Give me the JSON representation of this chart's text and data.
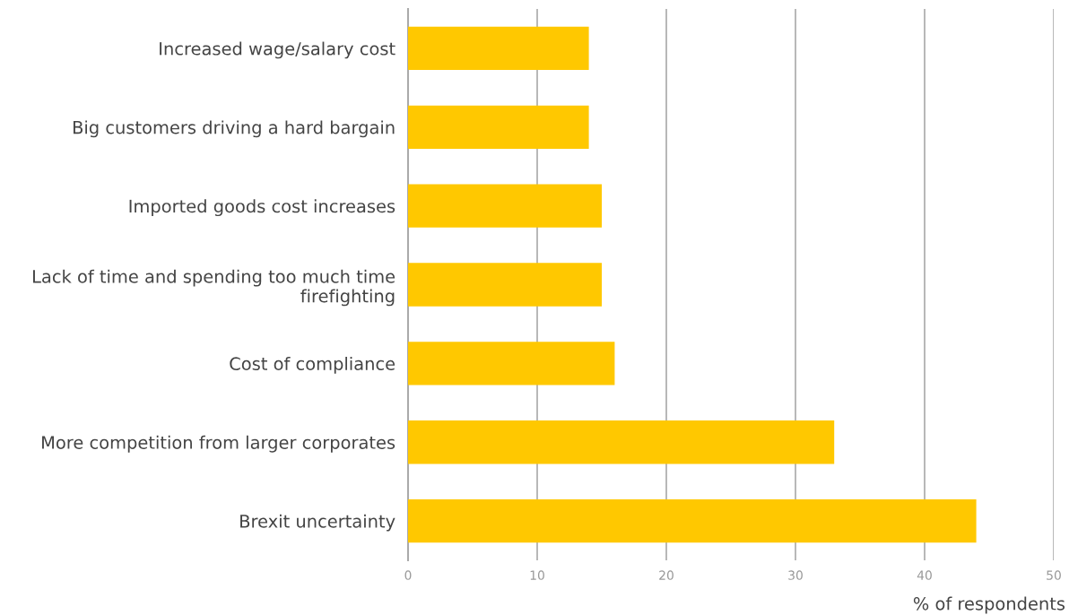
{
  "chart_data": {
    "type": "bar",
    "orientation": "horizontal",
    "xlabel": "% of respondents",
    "categories": [
      "Increased wage/salary cost",
      "Big customers driving a hard bargain",
      "Imported goods cost increases",
      "Lack of time and spending too much time\nfirefighting",
      "Cost of compliance",
      "More competition from larger corporates",
      "Brexit uncertainty"
    ],
    "values": [
      14,
      14,
      15,
      15,
      16,
      33,
      44
    ],
    "color": "#ffc800",
    "xlim": [
      0,
      50
    ],
    "xticks": [
      0,
      10,
      20,
      30,
      40,
      50
    ],
    "grid": "x",
    "legend": false
  }
}
